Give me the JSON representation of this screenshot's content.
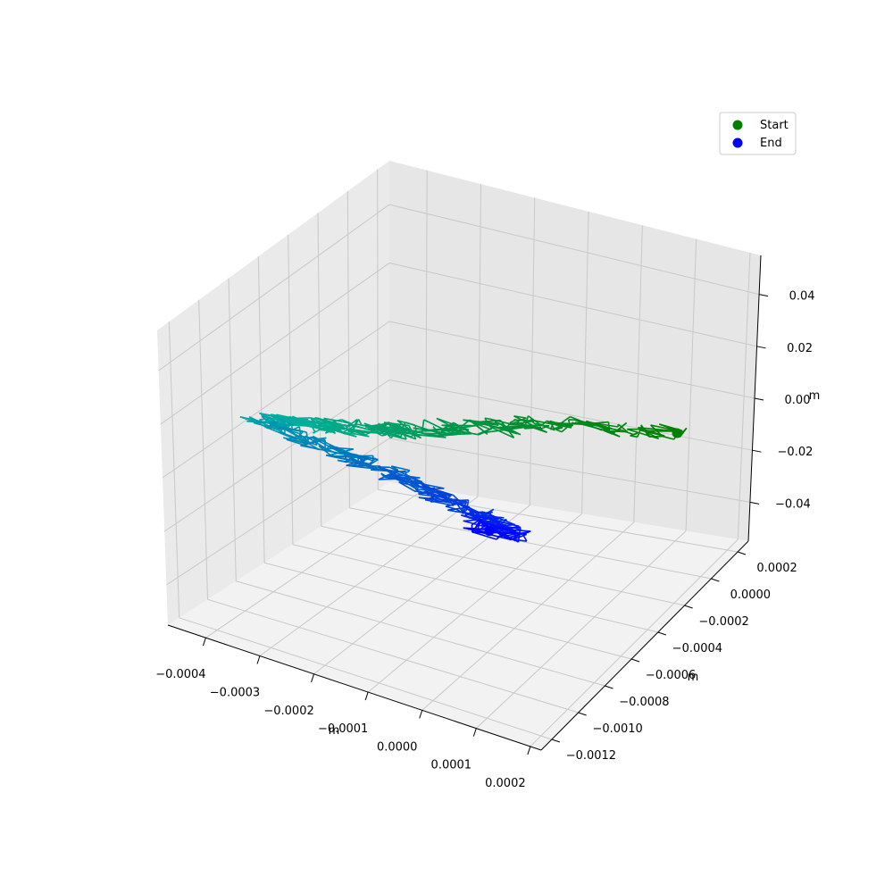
{
  "chart_data": {
    "type": "line3d",
    "title": "",
    "xlabel": "m",
    "ylabel": "m",
    "zlabel": "m",
    "x_ticks": [
      "−0.0004",
      "−0.0003",
      "−0.0002",
      "−0.0001",
      "0.0000",
      "0.0001",
      "0.0002"
    ],
    "y_ticks": [
      "−0.0012",
      "−0.0010",
      "−0.0008",
      "−0.0006",
      "−0.0004",
      "−0.0002",
      "0.0000",
      "0.0002"
    ],
    "z_ticks": [
      "−0.04",
      "−0.02",
      "0.00",
      "0.02",
      "0.04"
    ],
    "xlim": [
      -0.00047,
      0.00022
    ],
    "ylim": [
      -0.00128,
      0.00028
    ],
    "zlim": [
      -0.055,
      0.055
    ],
    "grid": true,
    "legend": {
      "position": "top-right",
      "entries": [
        {
          "label": "Start",
          "color": "#008000"
        },
        {
          "label": "End",
          "color": "#0000ff"
        }
      ]
    },
    "start_point": {
      "x": 0.00016,
      "y": -5e-05,
      "z": 0.0
    },
    "end_point": {
      "x": 5e-05,
      "y": -0.00097,
      "z": 0.0
    },
    "trajectory": {
      "segments": 160,
      "color_start": "#008000",
      "color_mid": "#00b0a0",
      "color_end": "#0000ff",
      "waypoints": [
        {
          "x": 0.00016,
          "y": -5e-05
        },
        {
          "x": 5e-05,
          "y": -0.00012
        },
        {
          "x": -5e-05,
          "y": -0.0002
        },
        {
          "x": -0.00012,
          "y": -0.0003
        },
        {
          "x": -0.00018,
          "y": -0.0004
        },
        {
          "x": -0.00024,
          "y": -0.00048
        },
        {
          "x": -0.00029,
          "y": -0.00052
        },
        {
          "x": -0.00034,
          "y": -0.00058
        },
        {
          "x": -0.0004,
          "y": -0.00062
        },
        {
          "x": -0.00045,
          "y": -0.00066
        },
        {
          "x": -0.00038,
          "y": -0.0007
        },
        {
          "x": -0.00028,
          "y": -0.00074
        },
        {
          "x": -0.0002,
          "y": -0.00078
        },
        {
          "x": -0.00012,
          "y": -0.00082
        },
        {
          "x": -4e-05,
          "y": -0.00086
        },
        {
          "x": 2e-05,
          "y": -0.0009
        },
        {
          "x": 8e-05,
          "y": -0.00094
        },
        {
          "x": 5e-05,
          "y": -0.00097
        }
      ]
    }
  }
}
